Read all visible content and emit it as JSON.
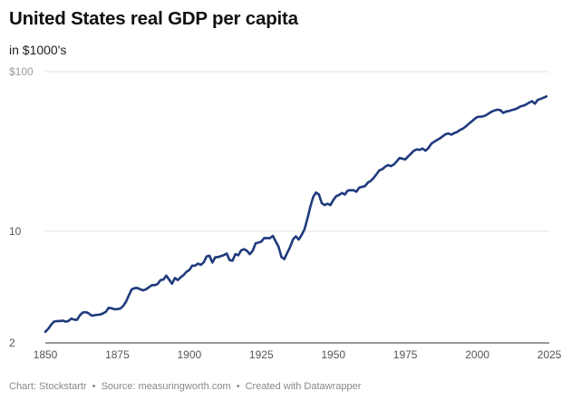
{
  "chart_data": {
    "type": "line",
    "title": "United States real GDP per capita",
    "subtitle": "in $1000's",
    "xlabel": "",
    "ylabel": "",
    "y_scale": "log",
    "ylim": [
      2,
      100
    ],
    "xlim": [
      1850,
      2025
    ],
    "x_ticks": [
      1850,
      1875,
      1900,
      1925,
      1950,
      1975,
      2000,
      2025
    ],
    "y_ticks": [
      {
        "value": 2,
        "label": "2"
      },
      {
        "value": 10,
        "label": "10"
      },
      {
        "value": 100,
        "label": "$100"
      }
    ],
    "grid": true,
    "legend": "none",
    "line_color": "#1f3a7d",
    "series": [
      {
        "name": "",
        "points": [
          [
            1850,
            2.35
          ],
          [
            1851,
            2.45
          ],
          [
            1852,
            2.6
          ],
          [
            1853,
            2.72
          ],
          [
            1854,
            2.74
          ],
          [
            1855,
            2.74
          ],
          [
            1856,
            2.76
          ],
          [
            1857,
            2.72
          ],
          [
            1858,
            2.74
          ],
          [
            1859,
            2.84
          ],
          [
            1860,
            2.8
          ],
          [
            1861,
            2.79
          ],
          [
            1862,
            2.98
          ],
          [
            1863,
            3.1
          ],
          [
            1864,
            3.12
          ],
          [
            1865,
            3.07
          ],
          [
            1866,
            2.97
          ],
          [
            1867,
            2.98
          ],
          [
            1868,
            3.0
          ],
          [
            1869,
            3.01
          ],
          [
            1870,
            3.06
          ],
          [
            1871,
            3.13
          ],
          [
            1872,
            3.32
          ],
          [
            1873,
            3.3
          ],
          [
            1874,
            3.25
          ],
          [
            1875,
            3.26
          ],
          [
            1876,
            3.28
          ],
          [
            1877,
            3.4
          ],
          [
            1878,
            3.62
          ],
          [
            1879,
            3.97
          ],
          [
            1880,
            4.33
          ],
          [
            1881,
            4.41
          ],
          [
            1882,
            4.42
          ],
          [
            1883,
            4.33
          ],
          [
            1884,
            4.27
          ],
          [
            1885,
            4.34
          ],
          [
            1886,
            4.47
          ],
          [
            1887,
            4.6
          ],
          [
            1888,
            4.6
          ],
          [
            1889,
            4.68
          ],
          [
            1890,
            4.95
          ],
          [
            1891,
            4.99
          ],
          [
            1892,
            5.28
          ],
          [
            1893,
            4.98
          ],
          [
            1894,
            4.7
          ],
          [
            1895,
            5.1
          ],
          [
            1896,
            4.95
          ],
          [
            1897,
            5.16
          ],
          [
            1898,
            5.32
          ],
          [
            1899,
            5.58
          ],
          [
            1900,
            5.72
          ],
          [
            1901,
            6.1
          ],
          [
            1902,
            6.1
          ],
          [
            1903,
            6.28
          ],
          [
            1904,
            6.17
          ],
          [
            1905,
            6.39
          ],
          [
            1906,
            6.96
          ],
          [
            1907,
            7.03
          ],
          [
            1908,
            6.38
          ],
          [
            1909,
            6.88
          ],
          [
            1910,
            6.9
          ],
          [
            1911,
            7.0
          ],
          [
            1912,
            7.1
          ],
          [
            1913,
            7.26
          ],
          [
            1914,
            6.6
          ],
          [
            1915,
            6.55
          ],
          [
            1916,
            7.2
          ],
          [
            1917,
            7.08
          ],
          [
            1918,
            7.6
          ],
          [
            1919,
            7.73
          ],
          [
            1920,
            7.56
          ],
          [
            1921,
            7.2
          ],
          [
            1922,
            7.55
          ],
          [
            1923,
            8.4
          ],
          [
            1924,
            8.5
          ],
          [
            1925,
            8.63
          ],
          [
            1926,
            9.07
          ],
          [
            1927,
            9.07
          ],
          [
            1928,
            9.06
          ],
          [
            1929,
            9.36
          ],
          [
            1930,
            8.64
          ],
          [
            1931,
            8.0
          ],
          [
            1932,
            6.9
          ],
          [
            1933,
            6.7
          ],
          [
            1934,
            7.33
          ],
          [
            1935,
            7.97
          ],
          [
            1936,
            8.9
          ],
          [
            1937,
            9.3
          ],
          [
            1938,
            8.88
          ],
          [
            1939,
            9.5
          ],
          [
            1940,
            10.3
          ],
          [
            1941,
            12.0
          ],
          [
            1942,
            14.2
          ],
          [
            1943,
            16.4
          ],
          [
            1944,
            17.5
          ],
          [
            1945,
            17.0
          ],
          [
            1946,
            15.0
          ],
          [
            1947,
            14.6
          ],
          [
            1948,
            14.9
          ],
          [
            1949,
            14.6
          ],
          [
            1950,
            15.7
          ],
          [
            1951,
            16.6
          ],
          [
            1952,
            16.9
          ],
          [
            1953,
            17.4
          ],
          [
            1954,
            17.0
          ],
          [
            1955,
            18.0
          ],
          [
            1956,
            18.1
          ],
          [
            1957,
            18.1
          ],
          [
            1958,
            17.7
          ],
          [
            1959,
            18.8
          ],
          [
            1960,
            19.0
          ],
          [
            1961,
            19.2
          ],
          [
            1962,
            20.2
          ],
          [
            1963,
            20.7
          ],
          [
            1964,
            21.6
          ],
          [
            1965,
            22.8
          ],
          [
            1966,
            24.1
          ],
          [
            1967,
            24.5
          ],
          [
            1968,
            25.4
          ],
          [
            1969,
            26.0
          ],
          [
            1970,
            25.6
          ],
          [
            1971,
            26.2
          ],
          [
            1972,
            27.4
          ],
          [
            1973,
            28.8
          ],
          [
            1974,
            28.5
          ],
          [
            1975,
            28.2
          ],
          [
            1976,
            29.5
          ],
          [
            1977,
            30.7
          ],
          [
            1978,
            32.0
          ],
          [
            1979,
            32.6
          ],
          [
            1980,
            32.4
          ],
          [
            1981,
            33.0
          ],
          [
            1982,
            32.0
          ],
          [
            1983,
            33.2
          ],
          [
            1984,
            35.3
          ],
          [
            1985,
            36.4
          ],
          [
            1986,
            37.3
          ],
          [
            1987,
            38.2
          ],
          [
            1988,
            39.4
          ],
          [
            1989,
            40.6
          ],
          [
            1990,
            41.0
          ],
          [
            1991,
            40.3
          ],
          [
            1992,
            41.3
          ],
          [
            1993,
            41.9
          ],
          [
            1994,
            43.2
          ],
          [
            1995,
            44.0
          ],
          [
            1996,
            45.4
          ],
          [
            1997,
            47.1
          ],
          [
            1998,
            48.7
          ],
          [
            1999,
            50.5
          ],
          [
            2000,
            52.0
          ],
          [
            2001,
            52.2
          ],
          [
            2002,
            52.5
          ],
          [
            2003,
            53.3
          ],
          [
            2004,
            54.8
          ],
          [
            2005,
            56.2
          ],
          [
            2006,
            57.2
          ],
          [
            2007,
            57.8
          ],
          [
            2008,
            57.4
          ],
          [
            2009,
            55.2
          ],
          [
            2010,
            56.3
          ],
          [
            2011,
            56.7
          ],
          [
            2012,
            57.5
          ],
          [
            2013,
            58.1
          ],
          [
            2014,
            59.1
          ],
          [
            2015,
            60.6
          ],
          [
            2016,
            61.2
          ],
          [
            2017,
            62.4
          ],
          [
            2018,
            64.0
          ],
          [
            2019,
            65.3
          ],
          [
            2020,
            63.0
          ],
          [
            2021,
            66.6
          ],
          [
            2022,
            67.6
          ],
          [
            2023,
            68.7
          ],
          [
            2024,
            70.0
          ]
        ]
      }
    ]
  },
  "footer": {
    "chart_by": "Chart: Stockstartr",
    "source": "Source: measuringworth.com",
    "created": "Created with Datawrapper",
    "separator": "•"
  }
}
